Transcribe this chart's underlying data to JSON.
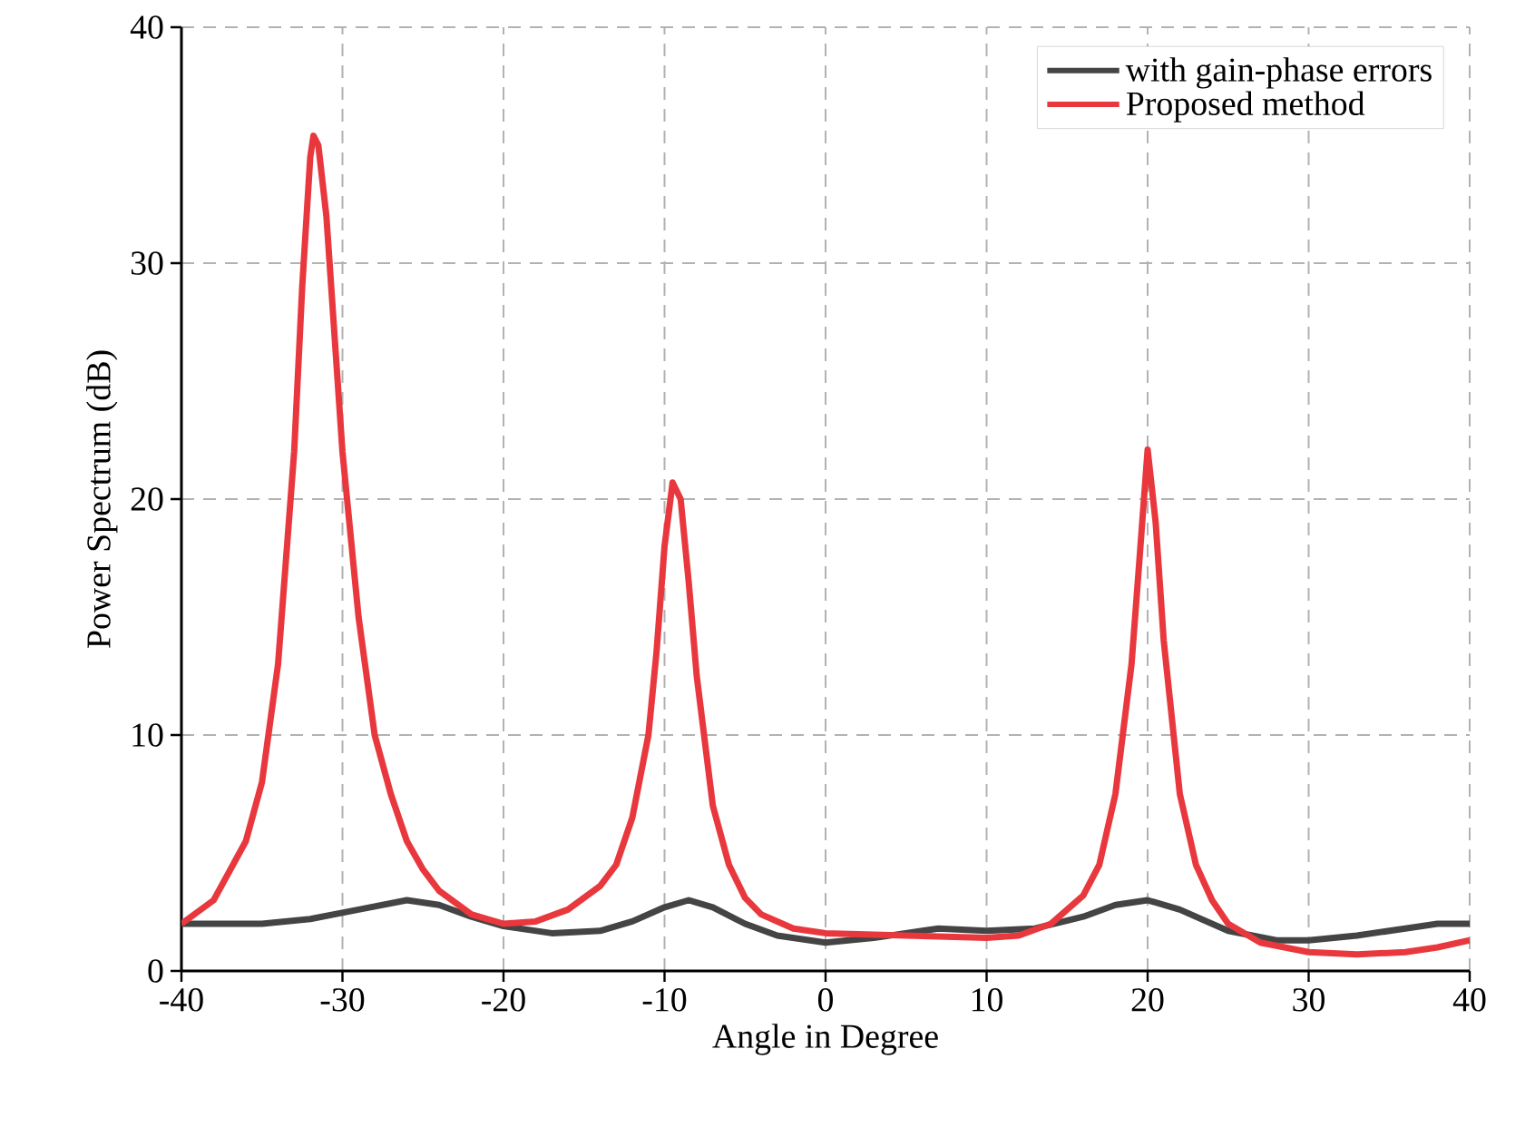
{
  "chart_data": {
    "type": "line",
    "xlabel": "Angle in Degree",
    "ylabel": "Power Spectrum (dB)",
    "xlim": [
      -40,
      40
    ],
    "ylim": [
      0,
      40
    ],
    "xticks": [
      -40,
      -30,
      -20,
      -10,
      0,
      10,
      20,
      30,
      40
    ],
    "yticks": [
      0,
      10,
      20,
      30,
      40
    ],
    "grid": true,
    "legend": "top right",
    "line_style": "solid",
    "marker": "none",
    "series": [
      {
        "name": "with gain-phase errors",
        "color": "#444444",
        "x": [
          -40,
          -35,
          -32,
          -29,
          -26,
          -24,
          -22,
          -20,
          -17,
          -14,
          -12,
          -10,
          -8.5,
          -7,
          -5,
          -3,
          0,
          3,
          7,
          10,
          13,
          16,
          18,
          20,
          22,
          25,
          28,
          30,
          33,
          36,
          38,
          40
        ],
        "values": [
          2.0,
          2.0,
          2.2,
          2.6,
          3.0,
          2.8,
          2.3,
          1.9,
          1.6,
          1.7,
          2.1,
          2.7,
          3.0,
          2.7,
          2.0,
          1.5,
          1.2,
          1.4,
          1.8,
          1.7,
          1.8,
          2.3,
          2.8,
          3.0,
          2.6,
          1.7,
          1.3,
          1.3,
          1.5,
          1.8,
          2.0,
          2.0
        ]
      },
      {
        "name": "Proposed method",
        "color": "#e8383d",
        "x": [
          -40,
          -38,
          -36,
          -35,
          -34,
          -33,
          -32.5,
          -32,
          -31.8,
          -31.5,
          -31,
          -30.5,
          -30,
          -29,
          -28,
          -27,
          -26,
          -25,
          -24,
          -22,
          -20,
          -18,
          -16,
          -14,
          -13,
          -12,
          -11,
          -10.5,
          -10,
          -9.5,
          -9,
          -8.5,
          -8,
          -7,
          -6,
          -5,
          -4,
          -2,
          0,
          5,
          10,
          12,
          14,
          16,
          17,
          18,
          19,
          19.5,
          20,
          20.5,
          21,
          22,
          23,
          24,
          25,
          27,
          30,
          33,
          36,
          38,
          40
        ],
        "values": [
          2.0,
          3.0,
          5.5,
          8,
          13,
          22,
          29,
          34.5,
          35.4,
          35,
          32,
          27,
          22,
          15,
          10,
          7.5,
          5.5,
          4.3,
          3.4,
          2.4,
          2.0,
          2.1,
          2.6,
          3.6,
          4.5,
          6.5,
          10,
          13.5,
          18,
          20.7,
          20,
          16.5,
          12.5,
          7,
          4.5,
          3.1,
          2.4,
          1.8,
          1.6,
          1.5,
          1.4,
          1.5,
          2.0,
          3.2,
          4.5,
          7.5,
          13,
          17.5,
          22.1,
          19,
          14,
          7.5,
          4.5,
          3.0,
          2.0,
          1.2,
          0.8,
          0.7,
          0.8,
          1.0,
          1.3
        ]
      }
    ]
  }
}
